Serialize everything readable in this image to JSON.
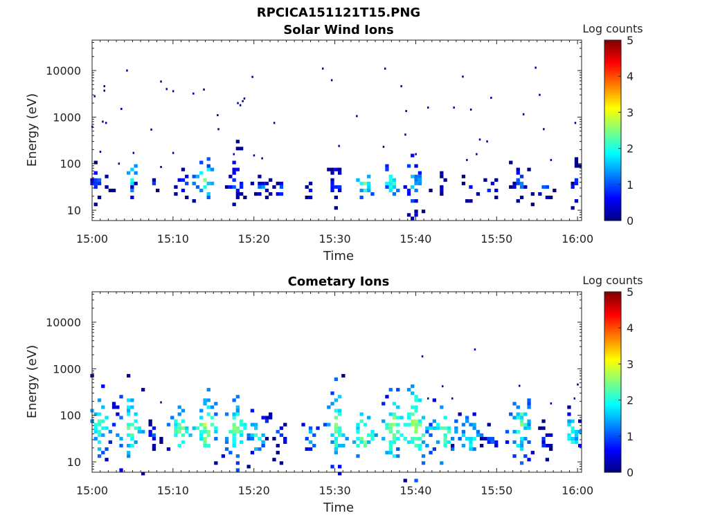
{
  "title": "RPCICA151121T15.PNG",
  "chart_data": [
    {
      "type": "heatmap",
      "title": "Solar Wind Ions",
      "xlabel": "Time",
      "ylabel": "Energy (eV)",
      "x_ticks": [
        "15:00",
        "15:10",
        "15:20",
        "15:30",
        "15:40",
        "15:50",
        "16:00"
      ],
      "x_range_min": [
        0,
        60.5
      ],
      "y_ticks": [
        10,
        100,
        1000,
        10000
      ],
      "y_tick_labels": [
        "10",
        "100",
        "1000",
        "10000"
      ],
      "ylim": [
        6,
        45000
      ],
      "y_scale": "log",
      "colorbar": {
        "label": "Log counts",
        "range": [
          0,
          5
        ],
        "ticks": [
          "0",
          "1",
          "2",
          "3",
          "4",
          "5"
        ],
        "colormap": "jet"
      },
      "blobs": [
        {
          "t": 0.8,
          "e": 40,
          "dt": 1.5,
          "de": 0.5,
          "n": 20
        },
        {
          "t": 4.9,
          "e": 55,
          "dt": 0.5,
          "de": 0.5,
          "n": 8,
          "c": 2.3
        },
        {
          "t": 5.4,
          "e": 33,
          "dt": 0.6,
          "de": 0.2,
          "n": 4
        },
        {
          "t": 7.5,
          "e": 33,
          "dt": 0.6,
          "de": 0.2,
          "n": 4
        },
        {
          "t": 11.5,
          "e": 35,
          "dt": 1.2,
          "de": 0.35,
          "n": 12
        },
        {
          "t": 14,
          "e": 45,
          "dt": 1.2,
          "de": 0.55,
          "n": 20,
          "c": 2.4
        },
        {
          "t": 17.8,
          "e": 40,
          "dt": 1.4,
          "de": 0.6,
          "n": 22
        },
        {
          "t": 21,
          "e": 33,
          "dt": 1.6,
          "de": 0.3,
          "n": 16
        },
        {
          "t": 23.5,
          "e": 28,
          "dt": 1.0,
          "de": 0.3,
          "n": 6
        },
        {
          "t": 27,
          "e": 28,
          "dt": 0.7,
          "de": 0.25,
          "n": 5
        },
        {
          "t": 30.1,
          "e": 40,
          "dt": 1.0,
          "de": 0.55,
          "n": 18
        },
        {
          "t": 33.8,
          "e": 37,
          "dt": 1.2,
          "de": 0.3,
          "n": 12,
          "c": 2.6
        },
        {
          "t": 37,
          "e": 40,
          "dt": 1.0,
          "de": 0.5,
          "n": 18,
          "c": 2.2
        },
        {
          "t": 39.8,
          "e": 40,
          "dt": 1.1,
          "de": 0.6,
          "n": 24,
          "c": 1.8
        },
        {
          "t": 43,
          "e": 36,
          "dt": 1.0,
          "de": 0.3,
          "n": 8
        },
        {
          "t": 46.5,
          "e": 30,
          "dt": 1.0,
          "de": 0.25,
          "n": 6
        },
        {
          "t": 49.5,
          "e": 28,
          "dt": 1.0,
          "de": 0.3,
          "n": 6
        },
        {
          "t": 53,
          "e": 38,
          "dt": 1.2,
          "de": 0.55,
          "n": 20
        },
        {
          "t": 56,
          "e": 28,
          "dt": 1.0,
          "de": 0.3,
          "n": 6
        },
        {
          "t": 59.8,
          "e": 35,
          "dt": 0.6,
          "de": 0.4,
          "n": 10
        }
      ],
      "scatter": [
        [
          0.3,
          2800
        ],
        [
          1.5,
          4600
        ],
        [
          1.5,
          3700
        ],
        [
          1.3,
          800
        ],
        [
          1.7,
          750
        ],
        [
          4.3,
          10000
        ],
        [
          3.6,
          1500
        ],
        [
          8.5,
          5800
        ],
        [
          9.2,
          4000
        ],
        [
          10.0,
          3600
        ],
        [
          12.5,
          3200
        ],
        [
          13.8,
          3900
        ],
        [
          15.5,
          1100
        ],
        [
          15.6,
          550
        ],
        [
          18.0,
          2000
        ],
        [
          18.3,
          1800
        ],
        [
          18.6,
          2200
        ],
        [
          18.8,
          2500
        ],
        [
          19.8,
          7300
        ],
        [
          22.5,
          750
        ],
        [
          28.5,
          11000
        ],
        [
          29.6,
          6200
        ],
        [
          32.7,
          1050
        ],
        [
          36.2,
          11000
        ],
        [
          38.2,
          4600
        ],
        [
          38.8,
          1350
        ],
        [
          41.5,
          1600
        ],
        [
          38.7,
          420
        ],
        [
          44.7,
          1600
        ],
        [
          46.8,
          1450
        ],
        [
          45.8,
          7400
        ],
        [
          47.9,
          330
        ],
        [
          48.8,
          300
        ],
        [
          49.3,
          2600
        ],
        [
          54.8,
          11500
        ],
        [
          55.3,
          3000
        ],
        [
          55.8,
          550
        ],
        [
          53.3,
          1150
        ],
        [
          56.7,
          120
        ],
        [
          59.7,
          750
        ],
        [
          30.5,
          240
        ],
        [
          36.0,
          230
        ],
        [
          40.0,
          160
        ],
        [
          46.3,
          120
        ],
        [
          47.5,
          160
        ],
        [
          7.3,
          540
        ],
        [
          10.0,
          170
        ],
        [
          8.5,
          85
        ],
        [
          1.0,
          180
        ],
        [
          5.1,
          170
        ],
        [
          3.3,
          100
        ],
        [
          17.5,
          160
        ],
        [
          20.0,
          150
        ],
        [
          21.0,
          130
        ],
        [
          0.0,
          620
        ]
      ]
    },
    {
      "type": "heatmap",
      "title": "Cometary Ions",
      "xlabel": "Time",
      "ylabel": "Energy (eV)",
      "x_ticks": [
        "15:00",
        "15:10",
        "15:20",
        "15:30",
        "15:40",
        "15:50",
        "16:00"
      ],
      "x_range_min": [
        0,
        60.5
      ],
      "y_ticks": [
        10,
        100,
        1000,
        10000
      ],
      "y_tick_labels": [
        "10",
        "100",
        "1000",
        "10000"
      ],
      "ylim": [
        6,
        45000
      ],
      "y_scale": "log",
      "colorbar": {
        "label": "Log counts",
        "range": [
          0,
          5
        ],
        "ticks": [
          "0",
          "1",
          "2",
          "3",
          "4",
          "5"
        ],
        "colormap": "jet"
      },
      "blobs": [
        {
          "t": 1.0,
          "e": 60,
          "dt": 1.6,
          "de": 0.75,
          "n": 45,
          "c": 2.3
        },
        {
          "t": 4.8,
          "e": 55,
          "dt": 1.6,
          "de": 0.75,
          "n": 40,
          "c": 2.5
        },
        {
          "t": 7.5,
          "e": 35,
          "dt": 1.0,
          "de": 0.35,
          "n": 12
        },
        {
          "t": 11.0,
          "e": 45,
          "dt": 1.5,
          "de": 0.6,
          "n": 25,
          "c": 2.6
        },
        {
          "t": 14.2,
          "e": 55,
          "dt": 1.4,
          "de": 0.7,
          "n": 35,
          "c": 2.8
        },
        {
          "t": 17.8,
          "e": 50,
          "dt": 1.6,
          "de": 0.7,
          "n": 40,
          "c": 2.6
        },
        {
          "t": 20.5,
          "e": 40,
          "dt": 1.6,
          "de": 0.5,
          "n": 25,
          "c": 2.2
        },
        {
          "t": 23.3,
          "e": 35,
          "dt": 1.1,
          "de": 0.45,
          "n": 16
        },
        {
          "t": 27.0,
          "e": 35,
          "dt": 1.0,
          "de": 0.35,
          "n": 12,
          "c": 1.9
        },
        {
          "t": 30.3,
          "e": 60,
          "dt": 1.2,
          "de": 0.8,
          "n": 40,
          "c": 2.6
        },
        {
          "t": 33.5,
          "e": 40,
          "dt": 1.5,
          "de": 0.5,
          "n": 25,
          "c": 2.8
        },
        {
          "t": 37.2,
          "e": 50,
          "dt": 1.5,
          "de": 0.7,
          "n": 40,
          "c": 2.7
        },
        {
          "t": 40.0,
          "e": 55,
          "dt": 1.8,
          "de": 0.8,
          "n": 55,
          "c": 2.8
        },
        {
          "t": 43.5,
          "e": 45,
          "dt": 1.6,
          "de": 0.6,
          "n": 30,
          "c": 2.5
        },
        {
          "t": 46.6,
          "e": 35,
          "dt": 1.6,
          "de": 0.5,
          "n": 25,
          "c": 2.2
        },
        {
          "t": 49.5,
          "e": 30,
          "dt": 1.2,
          "de": 0.35,
          "n": 12
        },
        {
          "t": 53.0,
          "e": 60,
          "dt": 1.6,
          "de": 0.75,
          "n": 45,
          "c": 2.4
        },
        {
          "t": 56.0,
          "e": 30,
          "dt": 1.2,
          "de": 0.35,
          "n": 14
        },
        {
          "t": 59.4,
          "e": 40,
          "dt": 1.2,
          "de": 0.5,
          "n": 22,
          "c": 2.3
        }
      ],
      "scatter": [
        [
          40.8,
          1850
        ],
        [
          47.3,
          2600
        ],
        [
          43.3,
          420
        ],
        [
          41.5,
          230
        ],
        [
          44.5,
          230
        ],
        [
          8.5,
          190
        ],
        [
          52.8,
          430
        ],
        [
          56.7,
          180
        ],
        [
          59.6,
          230
        ],
        [
          60.0,
          460
        ]
      ]
    }
  ]
}
